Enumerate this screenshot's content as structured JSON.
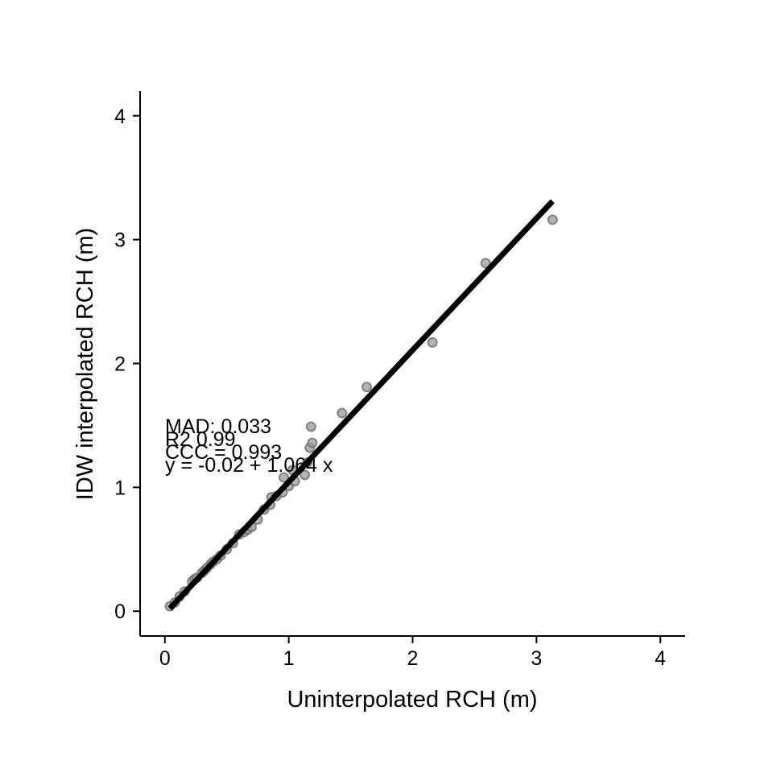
{
  "chart_data": {
    "type": "scatter",
    "xlabel": "Uninterpolated RCH (m)",
    "ylabel": "IDW interpolated RCH (m)",
    "xlim": [
      -0.2,
      4.2
    ],
    "ylim": [
      -0.2,
      4.2
    ],
    "x_ticks": [
      0,
      1,
      2,
      3,
      4
    ],
    "y_ticks": [
      0,
      1,
      2,
      3,
      4
    ],
    "grid": false,
    "point_color": "#9a9a9a",
    "point_edge_color": "#6e6e6e",
    "line_color": "#000000",
    "points": [
      {
        "x": 0.04,
        "y": 0.04
      },
      {
        "x": 0.08,
        "y": 0.07
      },
      {
        "x": 0.12,
        "y": 0.12
      },
      {
        "x": 0.16,
        "y": 0.16
      },
      {
        "x": 0.22,
        "y": 0.24
      },
      {
        "x": 0.24,
        "y": 0.26
      },
      {
        "x": 0.26,
        "y": 0.27
      },
      {
        "x": 0.3,
        "y": 0.31
      },
      {
        "x": 0.32,
        "y": 0.33
      },
      {
        "x": 0.34,
        "y": 0.35
      },
      {
        "x": 0.37,
        "y": 0.38
      },
      {
        "x": 0.39,
        "y": 0.4
      },
      {
        "x": 0.42,
        "y": 0.42
      },
      {
        "x": 0.45,
        "y": 0.45
      },
      {
        "x": 0.5,
        "y": 0.5
      },
      {
        "x": 0.55,
        "y": 0.55
      },
      {
        "x": 0.6,
        "y": 0.62
      },
      {
        "x": 0.64,
        "y": 0.64
      },
      {
        "x": 0.67,
        "y": 0.66
      },
      {
        "x": 0.7,
        "y": 0.68
      },
      {
        "x": 0.75,
        "y": 0.74
      },
      {
        "x": 0.8,
        "y": 0.82
      },
      {
        "x": 0.85,
        "y": 0.86
      },
      {
        "x": 0.86,
        "y": 0.92
      },
      {
        "x": 0.9,
        "y": 0.93
      },
      {
        "x": 0.95,
        "y": 0.96
      },
      {
        "x": 0.96,
        "y": 1.08
      },
      {
        "x": 1.0,
        "y": 1.01
      },
      {
        "x": 1.03,
        "y": 1.14
      },
      {
        "x": 1.05,
        "y": 1.05
      },
      {
        "x": 1.13,
        "y": 1.1
      },
      {
        "x": 1.15,
        "y": 1.2
      },
      {
        "x": 1.17,
        "y": 1.32
      },
      {
        "x": 1.19,
        "y": 1.36
      },
      {
        "x": 1.18,
        "y": 1.49
      },
      {
        "x": 1.43,
        "y": 1.6
      },
      {
        "x": 1.63,
        "y": 1.81
      },
      {
        "x": 2.16,
        "y": 2.17
      },
      {
        "x": 2.59,
        "y": 2.81
      },
      {
        "x": 3.13,
        "y": 3.16
      }
    ],
    "fit_line": {
      "intercept": -0.02,
      "slope": 1.064,
      "x_start": 0.04,
      "x_end": 3.13
    },
    "annotations": [
      "MAD: 0.033",
      "R2 0.99",
      "CCC = 0.993",
      "y =  -0.02 + 1.064 x"
    ]
  }
}
